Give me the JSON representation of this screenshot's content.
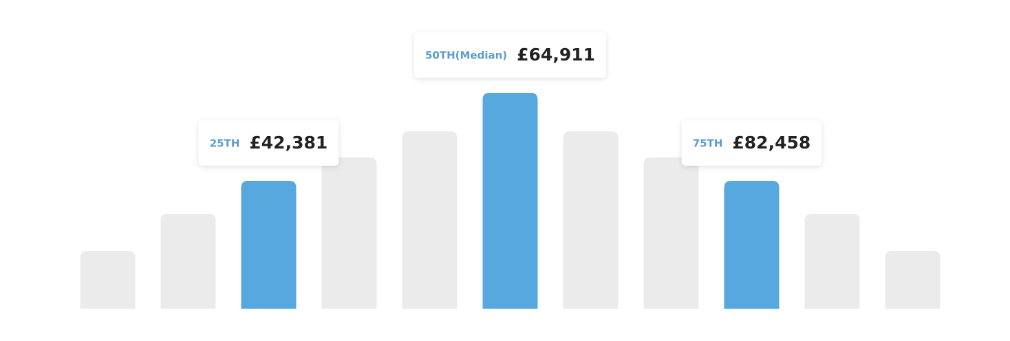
{
  "chart_data": {
    "type": "bar",
    "values": [
      84,
      138,
      186,
      220,
      258,
      314,
      258,
      220,
      186,
      138,
      84
    ],
    "colors": [
      "#ebebeb",
      "#ebebeb",
      "#57a8de",
      "#ebebeb",
      "#ebebeb",
      "#57a8de",
      "#ebebeb",
      "#ebebeb",
      "#57a8de",
      "#ebebeb",
      "#ebebeb"
    ],
    "percentile_labels": [
      null,
      null,
      "25TH",
      null,
      null,
      "50TH(Median)",
      null,
      null,
      "75TH",
      null,
      null
    ],
    "salary_labels": [
      null,
      null,
      "£42,381",
      null,
      null,
      "£64,911",
      null,
      null,
      "£82,458",
      null,
      null
    ]
  }
}
